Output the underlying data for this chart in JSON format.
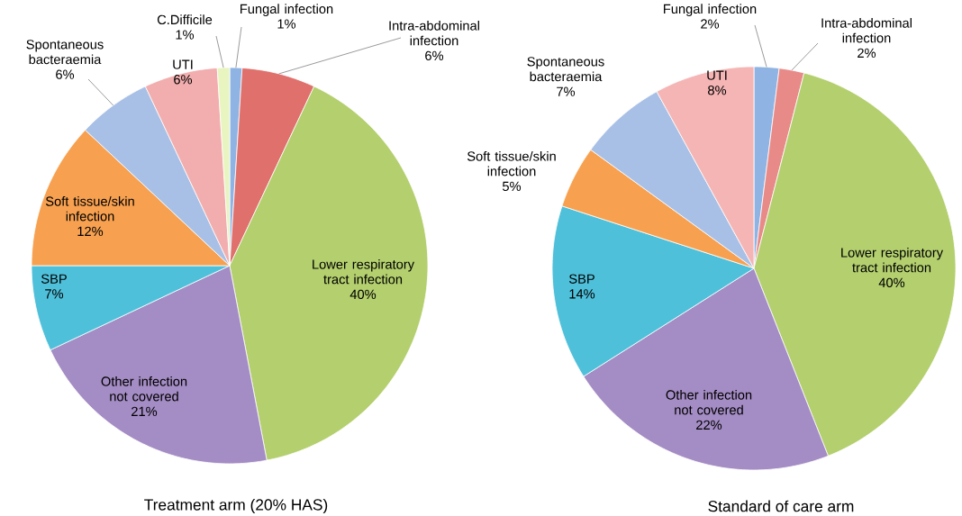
{
  "chart_data": [
    {
      "type": "pie",
      "title": "Treatment arm (20% HAS)",
      "categories": [
        "Fungal infection",
        "Intra-abdominal infection",
        "Lower respiratory tract infection",
        "Other infection not covered",
        "SBP",
        "Soft tissue/skin infection",
        "Spontaneous bacteraemia",
        "UTI",
        "C.Difficile"
      ],
      "values": [
        1,
        6,
        40,
        21,
        7,
        12,
        6,
        6,
        1
      ],
      "value_labels": [
        "1%",
        "6%",
        "40%",
        "21%",
        "7%",
        "12%",
        "6%",
        "6%",
        "1%"
      ],
      "colors": [
        "#8fb4e3",
        "#e0706c",
        "#b3cf6e",
        "#a48cc4",
        "#4fc0da",
        "#f7a150",
        "#a9c0e6",
        "#f2aeae",
        "#e8f5c0"
      ]
    },
    {
      "type": "pie",
      "title": "Standard of care arm",
      "categories": [
        "Fungal infection",
        "Intra-abdominal infection",
        "Lower respiratory tract infection",
        "Other infection not covered",
        "SBP",
        "Soft tissue/skin infection",
        "Spontaneous bacteraemia",
        "UTI"
      ],
      "values": [
        2,
        2,
        40,
        22,
        14,
        5,
        7,
        8
      ],
      "value_labels": [
        "2%",
        "2%",
        "40%",
        "22%",
        "14%",
        "5%",
        "7%",
        "8%"
      ],
      "colors": [
        "#8fb4e3",
        "#e88a88",
        "#b3cf6e",
        "#a48cc4",
        "#4fc0da",
        "#f7a150",
        "#a9c0e6",
        "#f5b5b5"
      ]
    }
  ]
}
